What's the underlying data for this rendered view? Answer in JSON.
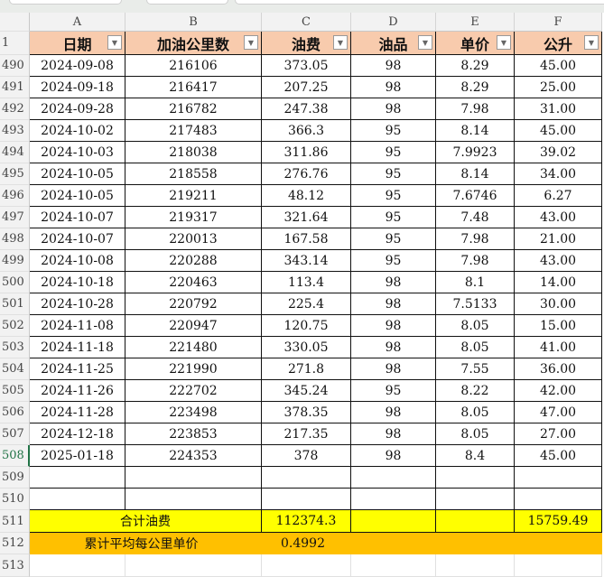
{
  "columns": [
    "A",
    "B",
    "C",
    "D",
    "E",
    "F"
  ],
  "headers": [
    "日期",
    "加油公里数",
    "油费",
    "油品",
    "单价",
    "公升"
  ],
  "header_row": "1",
  "rows": [
    [
      "490",
      "2024-09-08",
      "216106",
      "373.05",
      "98",
      "8.29",
      "45.00"
    ],
    [
      "491",
      "2024-09-18",
      "216417",
      "207.25",
      "98",
      "8.29",
      "25.00"
    ],
    [
      "492",
      "2024-09-28",
      "216782",
      "247.38",
      "98",
      "7.98",
      "31.00"
    ],
    [
      "493",
      "2024-10-02",
      "217483",
      "366.3",
      "95",
      "8.14",
      "45.00"
    ],
    [
      "494",
      "2024-10-03",
      "218038",
      "311.86",
      "95",
      "7.9923",
      "39.02"
    ],
    [
      "495",
      "2024-10-05",
      "218558",
      "276.76",
      "95",
      "8.14",
      "34.00"
    ],
    [
      "496",
      "2024-10-05",
      "219211",
      "48.12",
      "95",
      "7.6746",
      "6.27"
    ],
    [
      "497",
      "2024-10-07",
      "219317",
      "321.64",
      "95",
      "7.48",
      "43.00"
    ],
    [
      "498",
      "2024-10-07",
      "220013",
      "167.58",
      "95",
      "7.98",
      "21.00"
    ],
    [
      "499",
      "2024-10-08",
      "220288",
      "343.14",
      "95",
      "7.98",
      "43.00"
    ],
    [
      "500",
      "2024-10-18",
      "220463",
      "113.4",
      "98",
      "8.1",
      "14.00"
    ],
    [
      "501",
      "2024-10-28",
      "220792",
      "225.4",
      "98",
      "7.5133",
      "30.00"
    ],
    [
      "502",
      "2024-11-08",
      "220947",
      "120.75",
      "98",
      "8.05",
      "15.00"
    ],
    [
      "503",
      "2024-11-18",
      "221480",
      "330.05",
      "98",
      "8.05",
      "41.00"
    ],
    [
      "504",
      "2024-11-25",
      "221990",
      "271.8",
      "98",
      "7.55",
      "36.00"
    ],
    [
      "505",
      "2024-11-26",
      "222702",
      "345.24",
      "95",
      "8.22",
      "42.00"
    ],
    [
      "506",
      "2024-11-28",
      "223498",
      "378.35",
      "98",
      "8.05",
      "47.00"
    ],
    [
      "507",
      "2024-12-18",
      "223853",
      "217.35",
      "98",
      "8.05",
      "27.00"
    ],
    [
      "508",
      "2025-01-18",
      "224353",
      "378",
      "98",
      "8.4",
      "45.00"
    ]
  ],
  "empty_rows": [
    "509",
    "510"
  ],
  "total": {
    "row": "511",
    "label": "合计油费",
    "fee": "112374.3",
    "liters": "15759.49",
    "color": "#ffff00"
  },
  "avg": {
    "row": "512",
    "label": "累计平均每公里单价",
    "value": "0.4992",
    "color": "#ffc000"
  },
  "last_row": "513",
  "header_color": "#f8cbad"
}
